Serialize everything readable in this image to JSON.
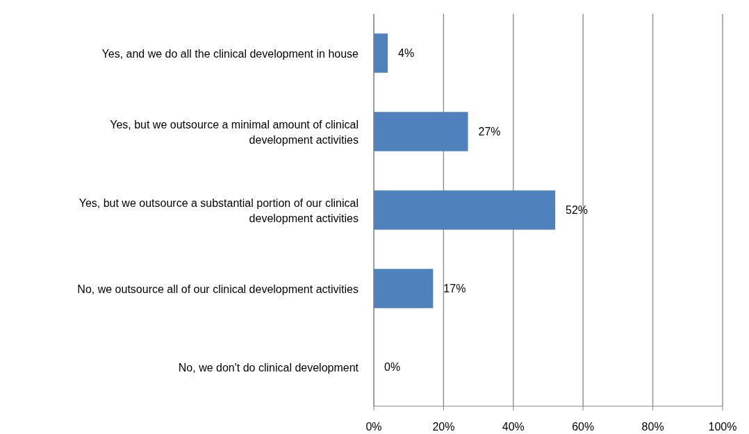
{
  "chart_data": {
    "type": "bar",
    "orientation": "horizontal",
    "categories": [
      "Yes, and we do all the clinical development in house",
      "Yes, but we outsource a minimal amount of clinical development activities",
      "Yes, but we outsource a substantial portion of our clinical development activities",
      "No, we outsource all of our clinical development activities",
      "No, we don't do clinical development"
    ],
    "values": [
      4,
      27,
      52,
      17,
      0
    ],
    "value_labels": [
      "4%",
      "27%",
      "52%",
      "17%",
      "0%"
    ],
    "color": "#4f81bd",
    "xlim": [
      0,
      100
    ],
    "xticks": [
      {
        "value": 0,
        "label": "0%"
      },
      {
        "value": 20,
        "label": "20%"
      },
      {
        "value": 40,
        "label": "40%"
      },
      {
        "value": 60,
        "label": "60%"
      },
      {
        "value": 80,
        "label": "80%"
      },
      {
        "value": 100,
        "label": "100%"
      }
    ],
    "grid": "x",
    "legend": false
  }
}
